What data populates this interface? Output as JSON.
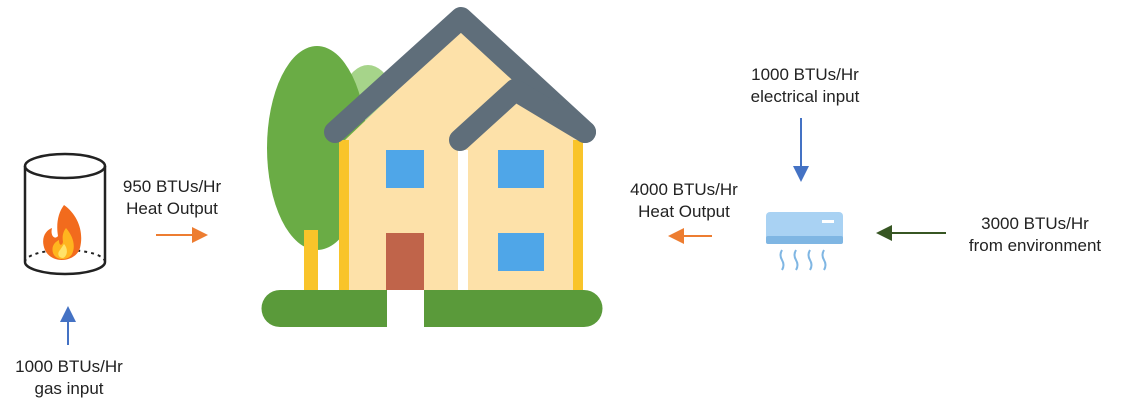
{
  "furnace": {
    "output": {
      "line1": "950 BTUs/Hr",
      "line2": "Heat Output"
    },
    "input": {
      "line1": "1000 BTUs/Hr",
      "line2": "gas input"
    }
  },
  "heat_pump": {
    "electrical": {
      "line1": "1000 BTUs/Hr",
      "line2": "electrical input"
    },
    "output": {
      "line1": "4000 BTUs/Hr",
      "line2": "Heat Output"
    },
    "environment": {
      "line1": "3000 BTUs/Hr",
      "line2": "from environment"
    }
  },
  "icons": [
    "furnace-cylinder-icon",
    "flame-icon",
    "house-icon",
    "tree-icon",
    "air-conditioner-icon"
  ],
  "colors": {
    "arrow_blue": "#4472c4",
    "arrow_orange": "#ed7d31",
    "arrow_green": "#375623",
    "house_wall": "#fde1a9",
    "roof": "#5f6e7a",
    "window": "#4fa6e8",
    "door": "#c0644a",
    "grass": "#5a9a3a",
    "tree": "#6aac45"
  }
}
